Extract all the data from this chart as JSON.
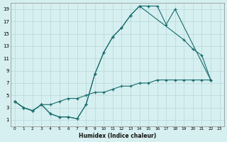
{
  "background_color": "#d6eff0",
  "grid_color": "#b8d8d8",
  "line_color": "#1a6e6e",
  "xlabel": "Humidex (Indice chaleur)",
  "xlim": [
    -0.5,
    23.5
  ],
  "ylim": [
    0,
    20
  ],
  "xtick_values": [
    0,
    1,
    2,
    3,
    4,
    5,
    6,
    7,
    8,
    9,
    10,
    11,
    12,
    13,
    14,
    15,
    16,
    17,
    18,
    19,
    20,
    21,
    22,
    23
  ],
  "ytick_values": [
    1,
    3,
    5,
    7,
    9,
    11,
    13,
    15,
    17,
    19
  ],
  "curve1_x": [
    0,
    1,
    2,
    3,
    4,
    5,
    6,
    7,
    8,
    9,
    10,
    11,
    12,
    13,
    14,
    15,
    16,
    17,
    18,
    22
  ],
  "curve1_y": [
    4,
    3,
    2.5,
    3.5,
    2.0,
    1.5,
    1.5,
    1.2,
    3.5,
    8.5,
    12.0,
    14.5,
    16.0,
    18.0,
    19.5,
    19.5,
    19.5,
    16.5,
    19.0,
    7.5
  ],
  "curve2_x": [
    0,
    1,
    2,
    3,
    4,
    5,
    6,
    7,
    8,
    9,
    10,
    11,
    12,
    13,
    14,
    19,
    20,
    21,
    22
  ],
  "curve2_y": [
    4,
    3,
    2.5,
    3.5,
    2.0,
    1.5,
    1.5,
    1.2,
    3.5,
    8.5,
    12.0,
    14.5,
    16.0,
    18.0,
    19.5,
    14.0,
    12.5,
    11.5,
    7.5
  ],
  "curve3_x": [
    0,
    1,
    2,
    3,
    4,
    5,
    6,
    7,
    8,
    9,
    10,
    11,
    12,
    13,
    14,
    15,
    16,
    17,
    18,
    19,
    20,
    21,
    22
  ],
  "curve3_y": [
    4,
    3,
    2.5,
    3.5,
    3.5,
    4.0,
    4.5,
    4.5,
    5.0,
    5.5,
    5.5,
    6.0,
    6.5,
    6.5,
    7.0,
    7.0,
    7.5,
    7.5,
    7.5,
    7.5,
    7.5,
    7.5,
    7.5
  ]
}
